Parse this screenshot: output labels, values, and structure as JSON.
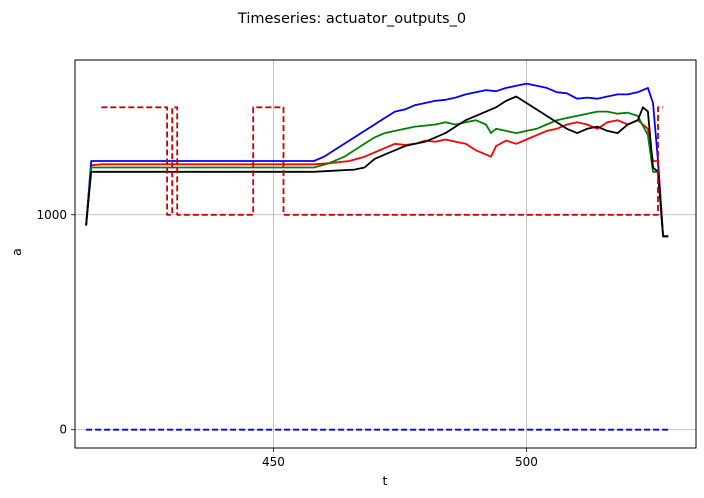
{
  "chart_data": {
    "type": "line",
    "title": "Timeseries: actuator_outputs_0",
    "xlabel": "t",
    "ylabel": "a",
    "xlim": [
      410.8,
      533.5
    ],
    "ylim": [
      -85,
      1720
    ],
    "grid": true,
    "xticks": [
      450,
      500
    ],
    "yticks": [
      0,
      1000
    ],
    "series": [
      {
        "color": "#ff0000",
        "style": "solid",
        "points": [
          [
            413,
            950
          ],
          [
            414,
            1230
          ],
          [
            416,
            1235
          ],
          [
            458,
            1235
          ],
          [
            461,
            1240
          ],
          [
            465,
            1250
          ],
          [
            468,
            1270
          ],
          [
            470,
            1290
          ],
          [
            472,
            1310
          ],
          [
            474,
            1330
          ],
          [
            476,
            1325
          ],
          [
            478,
            1330
          ],
          [
            480,
            1345
          ],
          [
            482,
            1340
          ],
          [
            484,
            1350
          ],
          [
            486,
            1340
          ],
          [
            488,
            1330
          ],
          [
            490,
            1300
          ],
          [
            492,
            1280
          ],
          [
            493,
            1270
          ],
          [
            494,
            1320
          ],
          [
            496,
            1345
          ],
          [
            498,
            1330
          ],
          [
            500,
            1350
          ],
          [
            502,
            1370
          ],
          [
            504,
            1390
          ],
          [
            506,
            1400
          ],
          [
            508,
            1420
          ],
          [
            510,
            1430
          ],
          [
            512,
            1420
          ],
          [
            514,
            1400
          ],
          [
            516,
            1430
          ],
          [
            518,
            1440
          ],
          [
            520,
            1420
          ],
          [
            522,
            1440
          ],
          [
            524,
            1400
          ],
          [
            525,
            1250
          ],
          [
            526,
            1250
          ],
          [
            527,
            900
          ],
          [
            528,
            900
          ]
        ]
      },
      {
        "color": "#0000ff",
        "style": "solid",
        "points": [
          [
            413,
            950
          ],
          [
            414,
            1250
          ],
          [
            416,
            1250
          ],
          [
            458,
            1250
          ],
          [
            460,
            1270
          ],
          [
            462,
            1300
          ],
          [
            464,
            1330
          ],
          [
            466,
            1360
          ],
          [
            468,
            1390
          ],
          [
            470,
            1420
          ],
          [
            472,
            1450
          ],
          [
            474,
            1480
          ],
          [
            476,
            1490
          ],
          [
            478,
            1510
          ],
          [
            480,
            1520
          ],
          [
            482,
            1530
          ],
          [
            484,
            1535
          ],
          [
            486,
            1545
          ],
          [
            488,
            1560
          ],
          [
            490,
            1570
          ],
          [
            492,
            1580
          ],
          [
            494,
            1575
          ],
          [
            496,
            1590
          ],
          [
            498,
            1600
          ],
          [
            500,
            1610
          ],
          [
            502,
            1600
          ],
          [
            504,
            1590
          ],
          [
            506,
            1570
          ],
          [
            508,
            1565
          ],
          [
            510,
            1540
          ],
          [
            512,
            1545
          ],
          [
            514,
            1540
          ],
          [
            516,
            1550
          ],
          [
            518,
            1560
          ],
          [
            520,
            1560
          ],
          [
            522,
            1570
          ],
          [
            523,
            1580
          ],
          [
            524,
            1590
          ],
          [
            525,
            1520
          ],
          [
            526,
            1250
          ],
          [
            527,
            900
          ],
          [
            528,
            900
          ]
        ]
      },
      {
        "color": "#008000",
        "style": "solid",
        "points": [
          [
            413,
            950
          ],
          [
            414,
            1220
          ],
          [
            416,
            1220
          ],
          [
            458,
            1220
          ],
          [
            461,
            1240
          ],
          [
            464,
            1270
          ],
          [
            466,
            1300
          ],
          [
            468,
            1330
          ],
          [
            470,
            1360
          ],
          [
            472,
            1380
          ],
          [
            474,
            1390
          ],
          [
            476,
            1400
          ],
          [
            478,
            1410
          ],
          [
            480,
            1415
          ],
          [
            482,
            1420
          ],
          [
            484,
            1430
          ],
          [
            486,
            1420
          ],
          [
            488,
            1430
          ],
          [
            490,
            1440
          ],
          [
            492,
            1420
          ],
          [
            493,
            1380
          ],
          [
            494,
            1400
          ],
          [
            496,
            1390
          ],
          [
            498,
            1380
          ],
          [
            500,
            1390
          ],
          [
            502,
            1400
          ],
          [
            504,
            1420
          ],
          [
            506,
            1440
          ],
          [
            508,
            1450
          ],
          [
            510,
            1460
          ],
          [
            512,
            1470
          ],
          [
            514,
            1480
          ],
          [
            516,
            1480
          ],
          [
            518,
            1470
          ],
          [
            520,
            1475
          ],
          [
            522,
            1460
          ],
          [
            524,
            1370
          ],
          [
            525,
            1200
          ],
          [
            526,
            1200
          ],
          [
            527,
            900
          ],
          [
            528,
            900
          ]
        ]
      },
      {
        "color": "#000000",
        "style": "solid",
        "points": [
          [
            413,
            950
          ],
          [
            414,
            1200
          ],
          [
            416,
            1200
          ],
          [
            458,
            1200
          ],
          [
            462,
            1205
          ],
          [
            466,
            1210
          ],
          [
            468,
            1220
          ],
          [
            470,
            1260
          ],
          [
            472,
            1280
          ],
          [
            474,
            1300
          ],
          [
            476,
            1320
          ],
          [
            478,
            1330
          ],
          [
            480,
            1340
          ],
          [
            482,
            1360
          ],
          [
            484,
            1380
          ],
          [
            486,
            1410
          ],
          [
            488,
            1440
          ],
          [
            490,
            1460
          ],
          [
            492,
            1480
          ],
          [
            494,
            1500
          ],
          [
            496,
            1530
          ],
          [
            498,
            1550
          ],
          [
            500,
            1520
          ],
          [
            502,
            1490
          ],
          [
            504,
            1460
          ],
          [
            506,
            1430
          ],
          [
            508,
            1400
          ],
          [
            510,
            1380
          ],
          [
            512,
            1400
          ],
          [
            514,
            1410
          ],
          [
            516,
            1390
          ],
          [
            518,
            1380
          ],
          [
            520,
            1420
          ],
          [
            522,
            1440
          ],
          [
            523,
            1500
          ],
          [
            524,
            1480
          ],
          [
            525,
            1220
          ],
          [
            526,
            1200
          ],
          [
            527,
            900
          ],
          [
            528,
            900
          ]
        ]
      },
      {
        "color": "#cc0000",
        "style": "dashed",
        "points": [
          [
            416,
            1500
          ],
          [
            429,
            1500
          ],
          [
            429,
            1000
          ],
          [
            430,
            1000
          ],
          [
            430,
            1500
          ],
          [
            431,
            1500
          ],
          [
            431,
            1000
          ],
          [
            446,
            1000
          ],
          [
            446,
            1500
          ],
          [
            452,
            1500
          ],
          [
            452,
            1000
          ],
          [
            526,
            1000
          ],
          [
            526,
            1500
          ],
          [
            527,
            1500
          ]
        ]
      },
      {
        "color": "#0000ff",
        "style": "dashed",
        "points": [
          [
            413,
            0
          ],
          [
            528,
            0
          ]
        ]
      }
    ]
  }
}
